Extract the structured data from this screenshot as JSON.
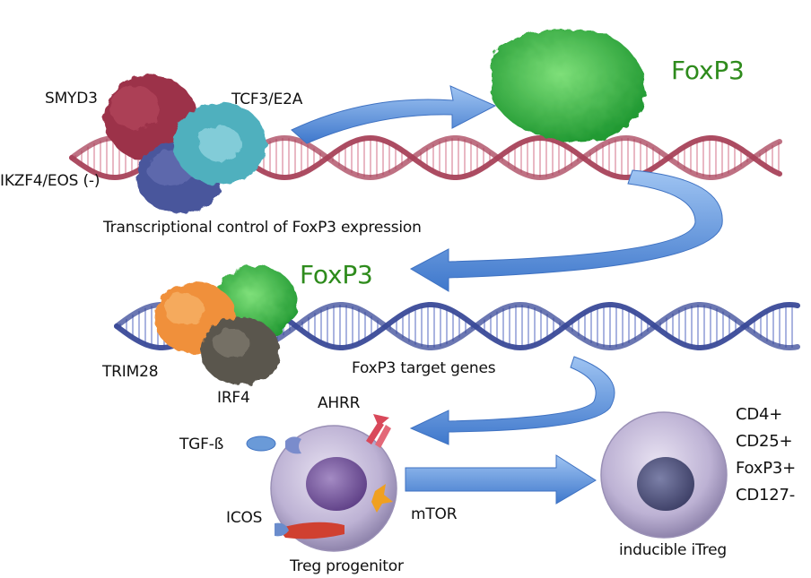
{
  "labels": {
    "smyd3": "SMYD3",
    "tcf3": "TCF3/E2A",
    "ikzf4": "IKZF4/EOS (-)",
    "transcriptional": "Transcriptional control of FoxP3 expression",
    "foxp3_top": "FoxP3",
    "foxp3_mid": "FoxP3",
    "trim28": "TRIM28",
    "irf4": "IRF4",
    "target_genes": "FoxP3 target genes",
    "ahrr": "AHRR",
    "tgfb": "TGF-ß",
    "icos": "ICOS",
    "mtor": "mTOR",
    "treg_progenitor": "Treg progenitor",
    "inducible": "inducible iTreg",
    "markers": [
      "CD4+",
      "CD25+",
      "FoxP3+",
      "CD127-"
    ]
  },
  "colors": {
    "foxp3_text": "#2e8b1c",
    "dna_top": "#a8425a",
    "dna_bottom": "#3a4a98",
    "arrow_blue": "#5b8fd8",
    "smyd3": "#9c3048",
    "tcf3": "#4fb0be",
    "ikzf4": "#4a569c",
    "foxp3_protein": "#3cb44a",
    "trim28": "#f0903a",
    "irf4": "#5a564e",
    "cell": "#c9bfdc",
    "nucleus": "#7a5c9c",
    "ahrr": "#d9485a",
    "mtor": "#f0a020",
    "icos": "#d04030"
  }
}
